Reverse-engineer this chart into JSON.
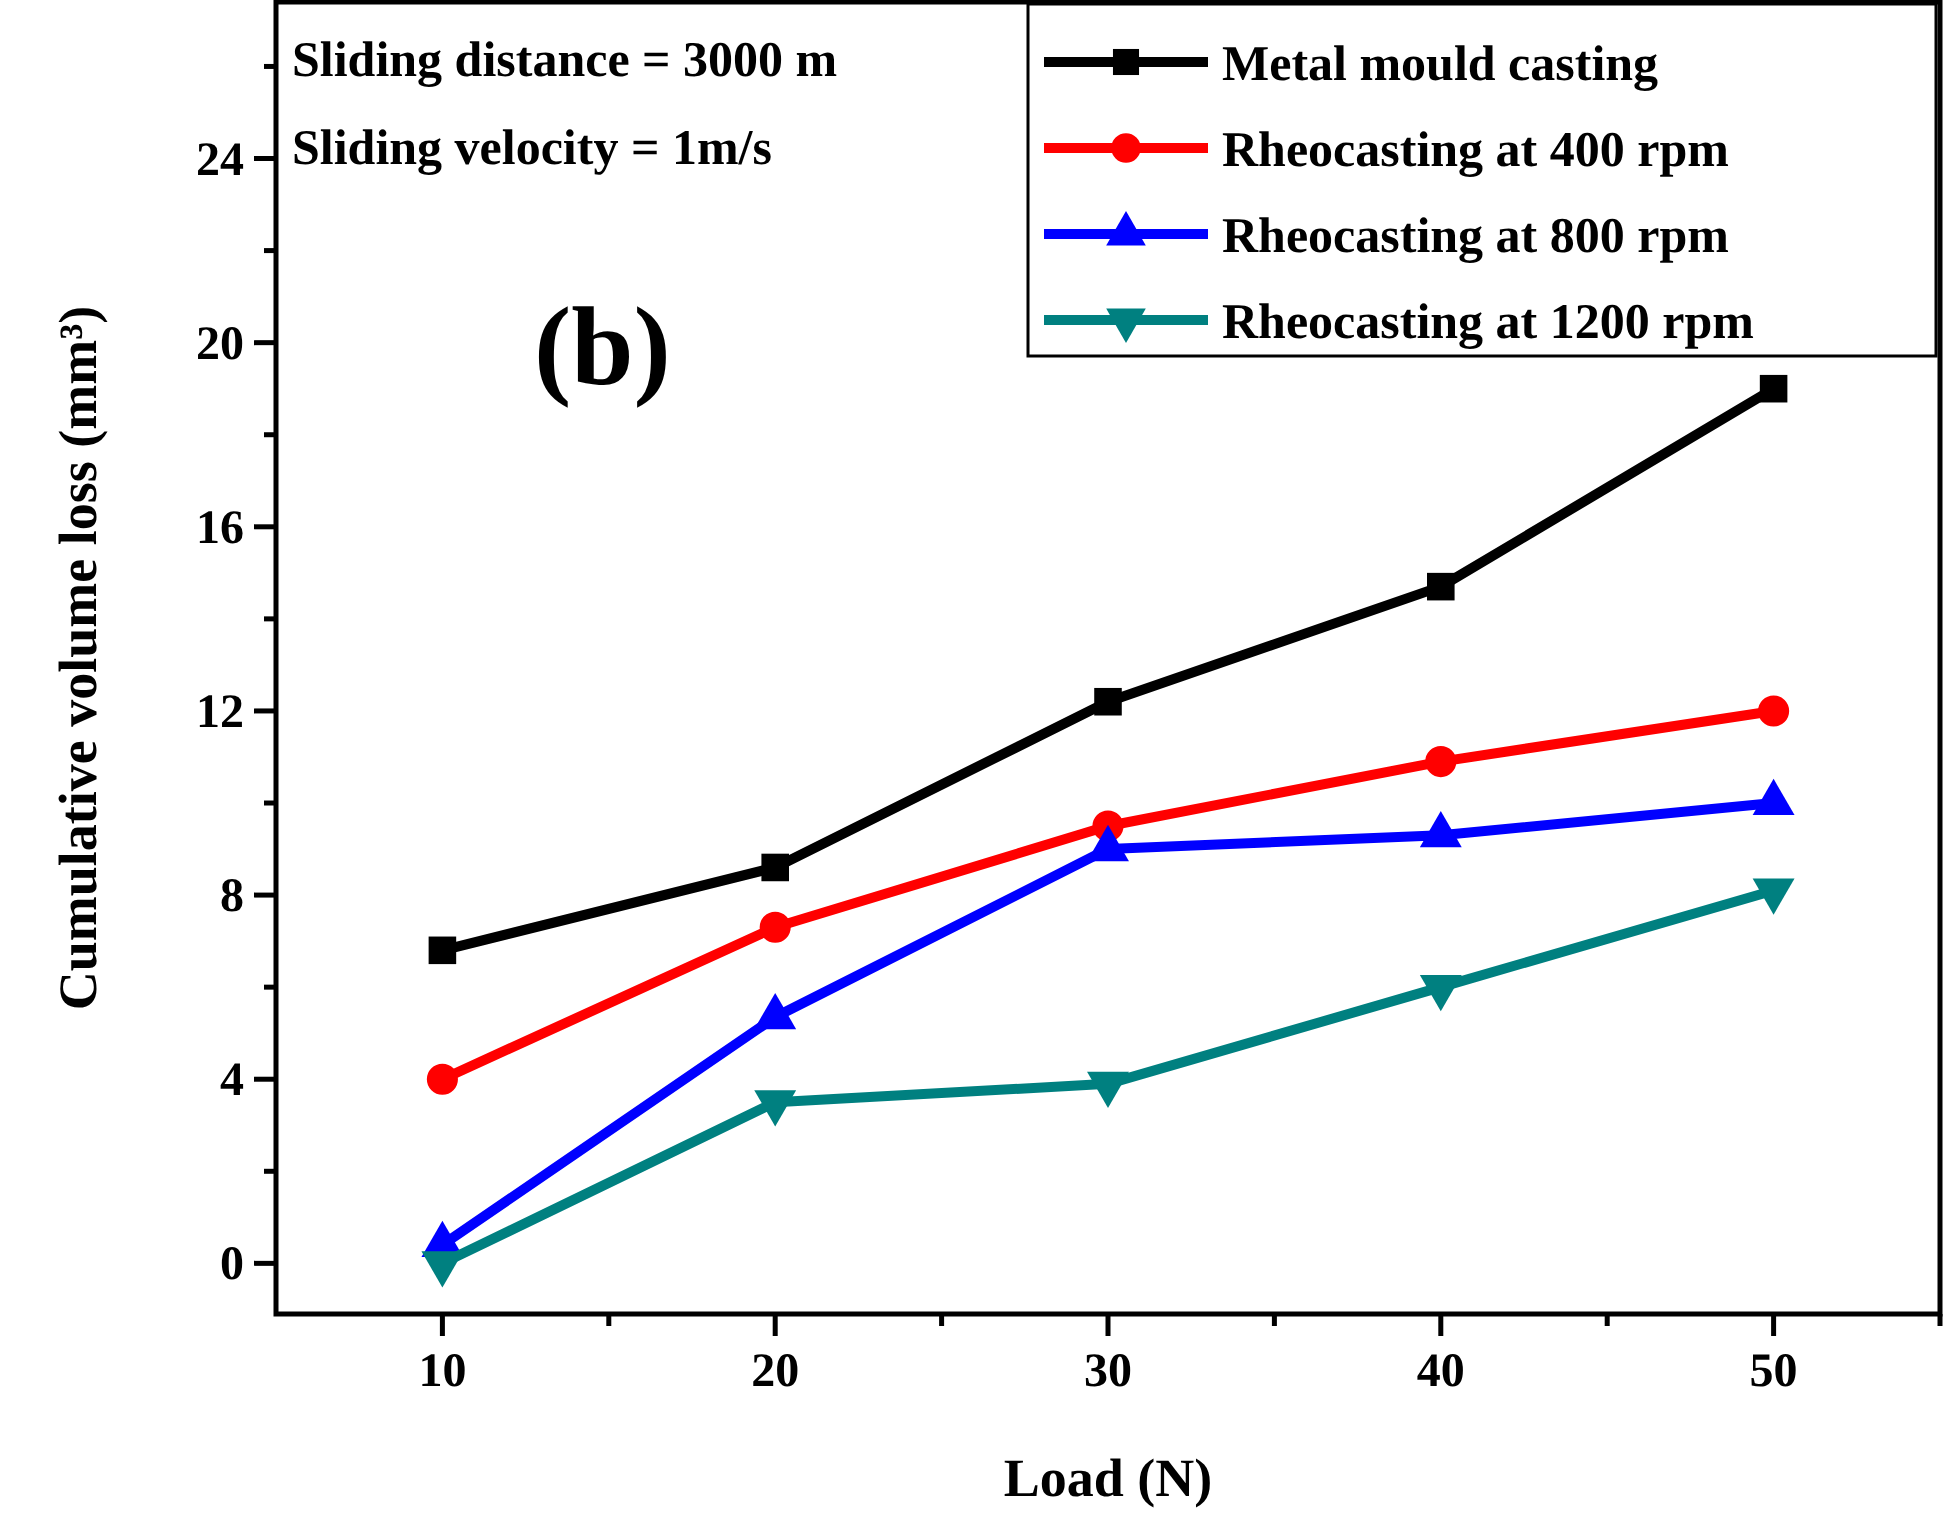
{
  "chart_data": {
    "type": "line",
    "xlabel": "Load (N)",
    "ylabel": "Cumulative volume loss (mm³)",
    "annotations": [
      "Sliding distance = 3000 m",
      "Sliding velocity = 1m/s",
      "(b)"
    ],
    "x": [
      10,
      20,
      30,
      40,
      50
    ],
    "series": [
      {
        "name": "Metal mould casting",
        "color": "#000000",
        "marker": "square",
        "values": [
          6.8,
          8.6,
          12.2,
          14.7,
          19.0
        ]
      },
      {
        "name": "Rheocasting at 400 rpm",
        "color": "#ff0000",
        "marker": "circle",
        "values": [
          4.0,
          7.3,
          9.5,
          10.9,
          12.0
        ]
      },
      {
        "name": "Rheocasting at 800 rpm",
        "color": "#0000ff",
        "marker": "triangle",
        "values": [
          0.4,
          5.35,
          9.0,
          9.3,
          10.0
        ]
      },
      {
        "name": "Rheocasting at 1200 rpm",
        "color": "#008080",
        "marker": "triangle-down",
        "values": [
          0.0,
          3.5,
          3.9,
          6.0,
          8.1
        ]
      }
    ],
    "xlim": [
      5,
      55
    ],
    "xticks": [
      10,
      {
        "value": 15,
        "label": null
      },
      20,
      {
        "value": 25,
        "label": null
      },
      30,
      {
        "value": 35,
        "label": null
      },
      40,
      {
        "value": 45,
        "label": null
      },
      50,
      {
        "value": 55,
        "label": null
      }
    ],
    "ylim": [
      -1.1,
      27.4
    ],
    "yticks": [
      0,
      {
        "value": 2,
        "label": null
      },
      4,
      {
        "value": 6,
        "label": null
      },
      8,
      {
        "value": 10,
        "label": null
      },
      12,
      {
        "value": 14,
        "label": null
      },
      16,
      {
        "value": 18,
        "label": null
      },
      20,
      {
        "value": 22,
        "label": null
      },
      24,
      {
        "value": 26,
        "label": null
      }
    ],
    "legend": "top right",
    "grid": false,
    "line_style": "solid"
  }
}
